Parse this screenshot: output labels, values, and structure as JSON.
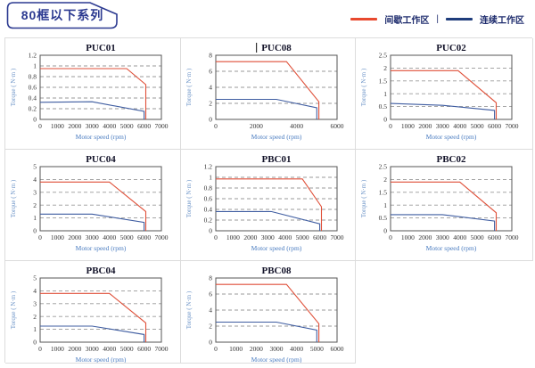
{
  "header": {
    "title": "80框以下系列",
    "legend": {
      "intermittent": {
        "label": "间歇工作区",
        "color": "#e8492e"
      },
      "separator": "|",
      "continuous": {
        "label": "连续工作区",
        "color": "#1f3d7c"
      }
    }
  },
  "colors": {
    "tag_navy": "#2b3990",
    "grid_border": "#dcdcdc",
    "plot_border": "#555555",
    "gridline": "#999999",
    "tick_text": "#333333",
    "xlabel_blue": "#4a7cc0",
    "ylabel_blue": "#6e95c8",
    "curve_red": "#df4f38",
    "curve_blue": "#3f5da1"
  },
  "chart_data": [
    {
      "type": "line",
      "title": "PUC01",
      "caret": false,
      "xlabel": "Motor speed (rpm)",
      "ylabel": "Torque ( N·m )",
      "xlim": [
        0,
        7000
      ],
      "ylim": [
        0,
        1.2
      ],
      "xticks": [
        0,
        1000,
        2000,
        3000,
        4000,
        5000,
        6000,
        7000
      ],
      "yticks": [
        0,
        0.2,
        0.4,
        0.6,
        0.8,
        1,
        1.2
      ],
      "grid": "horizontal-dashed",
      "legend_position": "none",
      "series": [
        {
          "name": "间歇工作区",
          "points": [
            [
              0,
              0.95
            ],
            [
              5000,
              0.95
            ],
            [
              6100,
              0.65
            ],
            [
              6100,
              0
            ]
          ]
        },
        {
          "name": "连续工作区",
          "points": [
            [
              0,
              0.32
            ],
            [
              3000,
              0.33
            ],
            [
              6000,
              0.15
            ],
            [
              6000,
              0
            ]
          ]
        }
      ]
    },
    {
      "type": "line",
      "title": "PUC08",
      "caret": true,
      "xlabel": "Motor speed (rpm)",
      "ylabel": "Torque ( N·m )",
      "xlim": [
        0,
        6000
      ],
      "ylim": [
        0,
        8
      ],
      "xticks": [
        0,
        2000,
        4000,
        6000
      ],
      "yticks": [
        0,
        2,
        4,
        6,
        8
      ],
      "grid": "horizontal-dashed",
      "legend_position": "none",
      "series": [
        {
          "name": "间歇工作区",
          "points": [
            [
              0,
              7.2
            ],
            [
              3500,
              7.2
            ],
            [
              5100,
              2.2
            ],
            [
              5100,
              0
            ]
          ]
        },
        {
          "name": "连续工作区",
          "points": [
            [
              0,
              2.5
            ],
            [
              3000,
              2.5
            ],
            [
              5000,
              1.45
            ],
            [
              5000,
              0
            ]
          ]
        }
      ]
    },
    {
      "type": "line",
      "title": "PUC02",
      "caret": false,
      "xlabel": "Motor speed (rpm)",
      "ylabel": "Torque ( N·m )",
      "xlim": [
        0,
        7000
      ],
      "ylim": [
        0,
        2.5
      ],
      "xticks": [
        0,
        1000,
        2000,
        3000,
        4000,
        5000,
        6000,
        7000
      ],
      "yticks": [
        0,
        0.5,
        1,
        1.5,
        2,
        2.5
      ],
      "grid": "horizontal-dashed",
      "legend_position": "none",
      "series": [
        {
          "name": "间歇工作区",
          "points": [
            [
              0,
              1.9
            ],
            [
              3900,
              1.9
            ],
            [
              6100,
              0.65
            ],
            [
              6100,
              0
            ]
          ]
        },
        {
          "name": "连续工作区",
          "points": [
            [
              0,
              0.62
            ],
            [
              3000,
              0.55
            ],
            [
              6000,
              0.35
            ],
            [
              6000,
              0
            ]
          ]
        }
      ]
    },
    {
      "type": "line",
      "title": "PUC04",
      "caret": false,
      "xlabel": "Motor speed (rpm)",
      "ylabel": "Torque ( N·m )",
      "xlim": [
        0,
        7000
      ],
      "ylim": [
        0,
        5
      ],
      "xticks": [
        0,
        1000,
        2000,
        3000,
        4000,
        5000,
        6000,
        7000
      ],
      "yticks": [
        0,
        1,
        2,
        3,
        4,
        5
      ],
      "grid": "horizontal-dashed",
      "legend_position": "none",
      "series": [
        {
          "name": "间歇工作区",
          "points": [
            [
              0,
              3.8
            ],
            [
              4000,
              3.8
            ],
            [
              6100,
              1.5
            ],
            [
              6100,
              0
            ]
          ]
        },
        {
          "name": "连续工作区",
          "points": [
            [
              0,
              1.3
            ],
            [
              3000,
              1.3
            ],
            [
              6000,
              0.65
            ],
            [
              6000,
              0
            ]
          ]
        }
      ]
    },
    {
      "type": "line",
      "title": "PBC01",
      "caret": false,
      "xlabel": "Motor speed (rpm)",
      "ylabel": "Torque ( N·m )",
      "xlim": [
        0,
        7000
      ],
      "ylim": [
        0,
        1.2
      ],
      "xticks": [
        0,
        1000,
        2000,
        3000,
        4000,
        5000,
        6000,
        7000
      ],
      "yticks": [
        0,
        0.2,
        0.4,
        0.6,
        0.8,
        1,
        1.2
      ],
      "grid": "horizontal-dashed",
      "legend_position": "none",
      "series": [
        {
          "name": "间歇工作区",
          "points": [
            [
              0,
              0.97
            ],
            [
              5000,
              0.97
            ],
            [
              6100,
              0.45
            ],
            [
              6100,
              0
            ]
          ]
        },
        {
          "name": "连续工作区",
          "points": [
            [
              0,
              0.36
            ],
            [
              3200,
              0.36
            ],
            [
              6000,
              0.13
            ],
            [
              6000,
              0
            ]
          ]
        }
      ]
    },
    {
      "type": "line",
      "title": "PBC02",
      "caret": false,
      "xlabel": "Motor speed (rpm)",
      "ylabel": "Torque ( N·m )",
      "xlim": [
        0,
        7000
      ],
      "ylim": [
        0,
        2.5
      ],
      "xticks": [
        0,
        1000,
        2000,
        3000,
        4000,
        5000,
        6000,
        7000
      ],
      "yticks": [
        0,
        0.5,
        1,
        1.5,
        2,
        2.5
      ],
      "grid": "horizontal-dashed",
      "legend_position": "none",
      "series": [
        {
          "name": "间歇工作区",
          "points": [
            [
              0,
              1.9
            ],
            [
              4000,
              1.9
            ],
            [
              6100,
              0.7
            ],
            [
              6100,
              0
            ]
          ]
        },
        {
          "name": "连续工作区",
          "points": [
            [
              0,
              0.63
            ],
            [
              3000,
              0.63
            ],
            [
              6000,
              0.38
            ],
            [
              6000,
              0
            ]
          ]
        }
      ]
    },
    {
      "type": "line",
      "title": "PBC04",
      "caret": false,
      "xlabel": "Motor speed (rpm)",
      "ylabel": "Torque ( N·m )",
      "xlim": [
        0,
        7000
      ],
      "ylim": [
        0,
        5
      ],
      "xticks": [
        0,
        1000,
        2000,
        3000,
        4000,
        5000,
        6000,
        7000
      ],
      "yticks": [
        0,
        1,
        2,
        3,
        4,
        5
      ],
      "grid": "horizontal-dashed",
      "legend_position": "none",
      "series": [
        {
          "name": "间歇工作区",
          "points": [
            [
              0,
              3.8
            ],
            [
              4000,
              3.8
            ],
            [
              6100,
              1.5
            ],
            [
              6100,
              0
            ]
          ]
        },
        {
          "name": "连续工作区",
          "points": [
            [
              0,
              1.25
            ],
            [
              3000,
              1.25
            ],
            [
              6000,
              0.6
            ],
            [
              6000,
              0
            ]
          ]
        }
      ]
    },
    {
      "type": "line",
      "title": "PBC08",
      "caret": false,
      "xlabel": "Motor speed (rpm)",
      "ylabel": "Torque ( N·m )",
      "xlim": [
        0,
        6000
      ],
      "ylim": [
        0,
        8
      ],
      "xticks": [
        0,
        1000,
        2000,
        3000,
        4000,
        5000,
        6000
      ],
      "yticks": [
        0,
        2,
        4,
        6,
        8
      ],
      "grid": "horizontal-dashed",
      "legend_position": "none",
      "series": [
        {
          "name": "间歇工作区",
          "points": [
            [
              0,
              7.2
            ],
            [
              3500,
              7.2
            ],
            [
              5100,
              2.3
            ],
            [
              5100,
              0
            ]
          ]
        },
        {
          "name": "连续工作区",
          "points": [
            [
              0,
              2.5
            ],
            [
              3000,
              2.5
            ],
            [
              5000,
              1.5
            ],
            [
              5000,
              0
            ]
          ]
        }
      ]
    }
  ]
}
